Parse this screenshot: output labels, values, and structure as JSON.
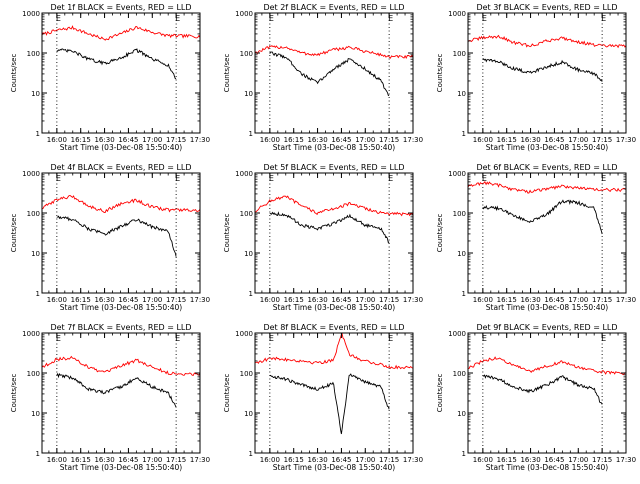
{
  "chart_data": [
    {
      "type": "line",
      "title": "Det 1f BLACK = Events, RED = LLD",
      "xlabel": "Start Time (03-Dec-08 15:50:40)",
      "ylabel": "Counts/sec",
      "yscale": "log",
      "ylim": [
        1,
        1000
      ],
      "xlim": [
        "15:50:40",
        "17:30:00"
      ],
      "x_ticks": [
        "16:00",
        "16:15",
        "16:30",
        "16:45",
        "17:00",
        "17:15",
        "17:30"
      ],
      "y_ticks": [
        "1",
        "10",
        "100",
        "1000"
      ],
      "markers": [
        {
          "x": "16:00",
          "label": "E"
        },
        {
          "x": "17:15",
          "label": "E"
        }
      ],
      "series": [
        {
          "color": "#ff0000",
          "x": [
            "15:50:40",
            "16:00",
            "16:10",
            "16:20",
            "16:30",
            "16:40",
            "16:50",
            "17:00",
            "17:10",
            "17:15",
            "17:30"
          ],
          "y": [
            290,
            370,
            430,
            300,
            220,
            300,
            440,
            330,
            270,
            270,
            260
          ]
        },
        {
          "color": "#000000",
          "x": [
            "16:00",
            "16:10",
            "16:20",
            "16:30",
            "16:40",
            "16:50",
            "17:00",
            "17:10",
            "17:15"
          ],
          "y": [
            120,
            110,
            70,
            55,
            75,
            120,
            70,
            50,
            22
          ]
        }
      ]
    },
    {
      "type": "line",
      "title": "Det 2f BLACK = Events, RED = LLD",
      "xlabel": "Start Time (03-Dec-08 15:50:40)",
      "ylabel": "Counts/sec",
      "yscale": "log",
      "ylim": [
        1,
        1000
      ],
      "xlim": [
        "15:50:40",
        "17:30:00"
      ],
      "x_ticks": [
        "16:00",
        "16:15",
        "16:30",
        "16:45",
        "17:00",
        "17:15",
        "17:30"
      ],
      "y_ticks": [
        "1",
        "10",
        "100",
        "1000"
      ],
      "markers": [
        {
          "x": "16:00",
          "label": "E"
        },
        {
          "x": "17:15",
          "label": "E"
        }
      ],
      "series": [
        {
          "color": "#ff0000",
          "x": [
            "15:50:40",
            "16:00",
            "16:10",
            "16:20",
            "16:30",
            "16:40",
            "16:50",
            "17:00",
            "17:10",
            "17:15",
            "17:30"
          ],
          "y": [
            100,
            140,
            140,
            100,
            90,
            120,
            140,
            110,
            90,
            80,
            80
          ]
        },
        {
          "color": "#000000",
          "x": [
            "16:00",
            "16:10",
            "16:20",
            "16:30",
            "16:40",
            "16:50",
            "17:00",
            "17:10",
            "17:15"
          ],
          "y": [
            100,
            80,
            30,
            18,
            40,
            70,
            40,
            20,
            8
          ]
        }
      ]
    },
    {
      "type": "line",
      "title": "Det 3f BLACK = Events, RED = LLD",
      "xlabel": "Start Time (03-Dec-08 15:50:40)",
      "ylabel": "Counts/sec",
      "yscale": "log",
      "ylim": [
        1,
        1000
      ],
      "xlim": [
        "15:50:40",
        "17:30:00"
      ],
      "x_ticks": [
        "16:00",
        "16:15",
        "16:30",
        "16:45",
        "17:00",
        "17:15",
        "17:30"
      ],
      "y_ticks": [
        "1",
        "10",
        "100",
        "1000"
      ],
      "markers": [
        {
          "x": "16:00",
          "label": "E"
        },
        {
          "x": "17:15",
          "label": "E"
        }
      ],
      "series": [
        {
          "color": "#ff0000",
          "x": [
            "15:50:40",
            "16:00",
            "16:10",
            "16:20",
            "16:30",
            "16:40",
            "16:50",
            "17:00",
            "17:10",
            "17:15",
            "17:30"
          ],
          "y": [
            200,
            240,
            260,
            180,
            150,
            200,
            240,
            190,
            160,
            150,
            150
          ]
        },
        {
          "color": "#000000",
          "x": [
            "16:00",
            "16:10",
            "16:20",
            "16:30",
            "16:40",
            "16:50",
            "17:00",
            "17:10",
            "17:15"
          ],
          "y": [
            70,
            60,
            40,
            32,
            45,
            60,
            38,
            30,
            20
          ]
        }
      ]
    },
    {
      "type": "line",
      "title": "Det 4f BLACK = Events, RED = LLD",
      "xlabel": "Start Time (03-Dec-08 15:50:40)",
      "ylabel": "Counts/sec",
      "yscale": "log",
      "ylim": [
        1,
        1000
      ],
      "xlim": [
        "15:50:40",
        "17:30:00"
      ],
      "x_ticks": [
        "16:00",
        "16:15",
        "16:30",
        "16:45",
        "17:00",
        "17:15",
        "17:30"
      ],
      "y_ticks": [
        "1",
        "10",
        "100",
        "1000"
      ],
      "markers": [
        {
          "x": "16:00",
          "label": "E"
        },
        {
          "x": "17:15",
          "label": "E"
        }
      ],
      "series": [
        {
          "color": "#ff0000",
          "x": [
            "15:50:40",
            "16:00",
            "16:10",
            "16:20",
            "16:30",
            "16:40",
            "16:50",
            "17:00",
            "17:10",
            "17:15",
            "17:30"
          ],
          "y": [
            130,
            220,
            260,
            150,
            110,
            170,
            210,
            140,
            120,
            120,
            115
          ]
        },
        {
          "color": "#000000",
          "x": [
            "16:00",
            "16:10",
            "16:20",
            "16:30",
            "16:40",
            "16:50",
            "17:00",
            "17:10",
            "17:15"
          ],
          "y": [
            80,
            70,
            40,
            30,
            45,
            70,
            45,
            35,
            8
          ]
        }
      ]
    },
    {
      "type": "line",
      "title": "Det 5f BLACK = Events, RED = LLD",
      "xlabel": "Start Time (03-Dec-08 15:50:40)",
      "ylabel": "Counts/sec",
      "yscale": "log",
      "ylim": [
        1,
        1000
      ],
      "xlim": [
        "15:50:40",
        "17:30:00"
      ],
      "x_ticks": [
        "16:00",
        "16:15",
        "16:30",
        "16:45",
        "17:00",
        "17:15",
        "17:30"
      ],
      "y_ticks": [
        "1",
        "10",
        "100",
        "1000"
      ],
      "markers": [
        {
          "x": "16:00",
          "label": "E"
        },
        {
          "x": "17:15",
          "label": "E"
        }
      ],
      "series": [
        {
          "color": "#ff0000",
          "x": [
            "15:50:40",
            "16:00",
            "16:10",
            "16:20",
            "16:30",
            "16:40",
            "16:50",
            "17:00",
            "17:10",
            "17:15",
            "17:30"
          ],
          "y": [
            110,
            200,
            260,
            150,
            100,
            130,
            170,
            130,
            100,
            95,
            95
          ]
        },
        {
          "color": "#000000",
          "x": [
            "16:00",
            "16:10",
            "16:20",
            "16:30",
            "16:40",
            "16:50",
            "17:00",
            "17:10",
            "17:15"
          ],
          "y": [
            100,
            90,
            50,
            40,
            55,
            85,
            50,
            40,
            18
          ]
        }
      ]
    },
    {
      "type": "line",
      "title": "Det 6f BLACK = Events, RED = LLD",
      "xlabel": "Start Time (03-Dec-08 15:50:40)",
      "ylabel": "Counts/sec",
      "yscale": "log",
      "ylim": [
        1,
        1000
      ],
      "xlim": [
        "15:50:40",
        "17:30:00"
      ],
      "x_ticks": [
        "16:00",
        "16:15",
        "16:30",
        "16:45",
        "17:00",
        "17:15",
        "17:30"
      ],
      "y_ticks": [
        "1",
        "10",
        "100",
        "1000"
      ],
      "markers": [
        {
          "x": "16:00",
          "label": "E"
        },
        {
          "x": "17:15",
          "label": "E"
        }
      ],
      "series": [
        {
          "color": "#ff0000",
          "x": [
            "15:50:40",
            "16:00",
            "16:10",
            "16:20",
            "16:30",
            "16:40",
            "16:50",
            "17:00",
            "17:10",
            "17:15",
            "17:30"
          ],
          "y": [
            450,
            580,
            500,
            380,
            340,
            400,
            470,
            430,
            380,
            380,
            380
          ]
        },
        {
          "color": "#000000",
          "x": [
            "16:00",
            "16:10",
            "16:20",
            "16:30",
            "16:40",
            "16:50",
            "17:00",
            "17:10",
            "17:15"
          ],
          "y": [
            140,
            130,
            85,
            60,
            90,
            200,
            180,
            130,
            32
          ]
        }
      ]
    },
    {
      "type": "line",
      "title": "Det 7f BLACK = Events, RED = LLD",
      "xlabel": "Start Time (03-Dec-08 15:50:40)",
      "ylabel": "Counts/sec",
      "yscale": "log",
      "ylim": [
        1,
        1000
      ],
      "xlim": [
        "15:50:40",
        "17:30:00"
      ],
      "x_ticks": [
        "16:00",
        "16:15",
        "16:30",
        "16:45",
        "17:00",
        "17:15",
        "17:30"
      ],
      "y_ticks": [
        "1",
        "10",
        "100",
        "1000"
      ],
      "markers": [
        {
          "x": "16:00",
          "label": "E"
        },
        {
          "x": "17:15",
          "label": "E"
        }
      ],
      "series": [
        {
          "color": "#ff0000",
          "x": [
            "15:50:40",
            "16:00",
            "16:10",
            "16:20",
            "16:30",
            "16:40",
            "16:50",
            "17:00",
            "17:10",
            "17:15",
            "17:30"
          ],
          "y": [
            140,
            220,
            240,
            140,
            100,
            150,
            210,
            140,
            100,
            95,
            95
          ]
        },
        {
          "color": "#000000",
          "x": [
            "16:00",
            "16:10",
            "16:20",
            "16:30",
            "16:40",
            "16:50",
            "17:00",
            "17:10",
            "17:15"
          ],
          "y": [
            90,
            75,
            40,
            32,
            45,
            75,
            45,
            32,
            14
          ]
        }
      ]
    },
    {
      "type": "line",
      "title": "Det 8f BLACK = Events, RED = LLD",
      "xlabel": "Start Time (03-Dec-08 15:50:40)",
      "ylabel": "Counts/sec",
      "yscale": "log",
      "ylim": [
        1,
        1000
      ],
      "xlim": [
        "15:50:40",
        "17:30:00"
      ],
      "x_ticks": [
        "16:00",
        "16:15",
        "16:30",
        "16:45",
        "17:00",
        "17:15",
        "17:30"
      ],
      "y_ticks": [
        "1",
        "10",
        "100",
        "1000"
      ],
      "markers": [
        {
          "x": "16:00",
          "label": "E"
        },
        {
          "x": "17:15",
          "label": "E"
        }
      ],
      "series": [
        {
          "color": "#ff0000",
          "x": [
            "15:50:40",
            "16:00",
            "16:10",
            "16:20",
            "16:30",
            "16:40",
            "16:45",
            "16:50",
            "17:00",
            "17:10",
            "17:15",
            "17:30"
          ],
          "y": [
            180,
            230,
            220,
            200,
            180,
            210,
            1000,
            280,
            200,
            160,
            140,
            140
          ]
        },
        {
          "color": "#000000",
          "x": [
            "16:00",
            "16:10",
            "16:20",
            "16:30",
            "16:40",
            "16:45",
            "16:50",
            "17:00",
            "17:10",
            "17:15"
          ],
          "y": [
            85,
            70,
            50,
            40,
            55,
            3,
            95,
            60,
            45,
            12
          ]
        }
      ]
    },
    {
      "type": "line",
      "title": "Det 9f BLACK = Events, RED = LLD",
      "xlabel": "Start Time (03-Dec-08 15:50:40)",
      "ylabel": "Counts/sec",
      "yscale": "log",
      "ylim": [
        1,
        1000
      ],
      "xlim": [
        "15:50:40",
        "17:30:00"
      ],
      "x_ticks": [
        "16:00",
        "16:15",
        "16:30",
        "16:45",
        "17:00",
        "17:15",
        "17:30"
      ],
      "y_ticks": [
        "1",
        "10",
        "100",
        "1000"
      ],
      "markers": [
        {
          "x": "16:00",
          "label": "E"
        },
        {
          "x": "17:15",
          "label": "E"
        }
      ],
      "series": [
        {
          "color": "#ff0000",
          "x": [
            "15:50:40",
            "16:00",
            "16:10",
            "16:20",
            "16:30",
            "16:40",
            "16:50",
            "17:00",
            "17:10",
            "17:15",
            "17:30"
          ],
          "y": [
            130,
            200,
            240,
            150,
            110,
            150,
            190,
            140,
            110,
            105,
            100
          ]
        },
        {
          "color": "#000000",
          "x": [
            "16:00",
            "16:10",
            "16:20",
            "16:30",
            "16:40",
            "16:50",
            "17:00",
            "17:10",
            "17:15"
          ],
          "y": [
            85,
            70,
            45,
            35,
            50,
            80,
            50,
            40,
            15
          ]
        }
      ]
    }
  ]
}
